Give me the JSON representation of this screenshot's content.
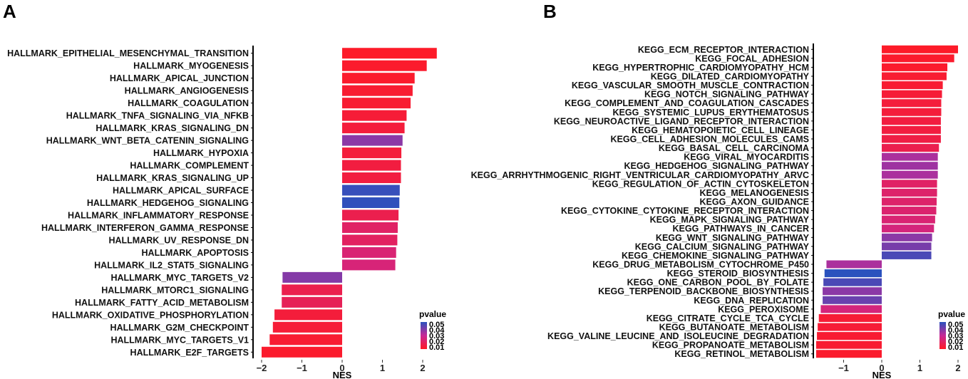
{
  "chart_data": [
    {
      "type": "bar",
      "panel": "A",
      "orientation": "horizontal",
      "xlabel": "NES",
      "xlim": [
        -2.2,
        2.5
      ],
      "xticks": [
        -2,
        -1,
        0,
        1,
        2
      ],
      "xtick_labels": [
        "−2",
        "−1",
        "0",
        "1",
        "2"
      ],
      "categories": [
        "HALLMARK_EPITHELIAL_MESENCHYMAL_TRANSITION",
        "HALLMARK_MYOGENESIS",
        "HALLMARK_APICAL_JUNCTION",
        "HALLMARK_ANGIOGENESIS",
        "HALLMARK_COAGULATION",
        "HALLMARK_TNFA_SIGNALING_VIA_NFKB",
        "HALLMARK_KRAS_SIGNALING_DN",
        "HALLMARK_WNT_BETA_CATENIN_SIGNALING",
        "HALLMARK_HYPOXIA",
        "HALLMARK_COMPLEMENT",
        "HALLMARK_KRAS_SIGNALING_UP",
        "HALLMARK_APICAL_SURFACE",
        "HALLMARK_HEDGEHOG_SIGNALING",
        "HALLMARK_INFLAMMATORY_RESPONSE",
        "HALLMARK_INTERFERON_GAMMA_RESPONSE",
        "HALLMARK_UV_RESPONSE_DN",
        "HALLMARK_APOPTOSIS",
        "HALLMARK_IL2_STAT5_SIGNALING",
        "HALLMARK_MYC_TARGETS_V2",
        "HALLMARK_MTORC1_SIGNALING",
        "HALLMARK_FATTY_ACID_METABOLISM",
        "HALLMARK_OXIDATIVE_PHOSPHORYLATION",
        "HALLMARK_G2M_CHECKPOINT",
        "HALLMARK_MYC_TARGETS_V1",
        "HALLMARK_E2F_TARGETS"
      ],
      "values": [
        2.35,
        2.1,
        1.8,
        1.75,
        1.7,
        1.6,
        1.55,
        1.5,
        1.47,
        1.46,
        1.46,
        1.43,
        1.42,
        1.4,
        1.38,
        1.37,
        1.34,
        1.32,
        -1.48,
        -1.5,
        -1.5,
        -1.68,
        -1.72,
        -1.8,
        -2.0
      ],
      "pvalues": [
        0.002,
        0.003,
        0.003,
        0.004,
        0.004,
        0.005,
        0.006,
        0.035,
        0.006,
        0.007,
        0.007,
        0.048,
        0.049,
        0.01,
        0.015,
        0.014,
        0.018,
        0.019,
        0.036,
        0.01,
        0.012,
        0.006,
        0.005,
        0.004,
        0.003
      ],
      "legend": {
        "title": "pvalue",
        "ticks": [
          "0.05",
          "0.04",
          "0.03",
          "0.02",
          "0.01"
        ],
        "position": "bottom-right"
      }
    },
    {
      "type": "bar",
      "panel": "B",
      "orientation": "horizontal",
      "xlabel": "NES",
      "xlim": [
        -1.85,
        2.2
      ],
      "xticks": [
        -1,
        0,
        1,
        2
      ],
      "xtick_labels": [
        "−1",
        "0",
        "1",
        "2"
      ],
      "categories": [
        "KEGG_ECM_RECEPTOR_INTERACTION",
        "KEGG_FOCAL_ADHESION",
        "KEGG_HYPERTROPHIC_CARDIOMYOPATHY_HCM",
        "KEGG_DILATED_CARDIOMYOPATHY",
        "KEGG_VASCULAR_SMOOTH_MUSCLE_CONTRACTION",
        "KEGG_NOTCH_SIGNALING_PATHWAY",
        "KEGG_COMPLEMENT_AND_COAGULATION_CASCADES",
        "KEGG_SYSTEMIC_LUPUS_ERYTHEMATOSUS",
        "KEGG_NEUROACTIVE_LIGAND_RECEPTOR_INTERACTION",
        "KEGG_HEMATOPOIETIC_CELL_LINEAGE",
        "KEGG_CELL_ADHESION_MOLECULES_CAMS",
        "KEGG_BASAL_CELL_CARCINOMA",
        "KEGG_VIRAL_MYOCARDITIS",
        "KEGG_HEDGEHOG_SIGNALING_PATHWAY",
        "KEGG_ARRHYTHMOGENIC_RIGHT_VENTRICULAR_CARDIOMYOPATHY_ARVC",
        "KEGG_REGULATION_OF_ACTIN_CYTOSKELETON",
        "KEGG_MELANOGENESIS",
        "KEGG_AXON_GUIDANCE",
        "KEGG_CYTOKINE_CYTOKINE_RECEPTOR_INTERACTION",
        "KEGG_MAPK_SIGNALING_PATHWAY",
        "KEGG_PATHWAYS_IN_CANCER",
        "KEGG_WNT_SIGNALING_PATHWAY",
        "KEGG_CALCIUM_SIGNALING_PATHWAY",
        "KEGG_CHEMOKINE_SIGNALING_PATHWAY",
        "KEGG_DRUG_METABOLISM_CYTOCHROME_P450",
        "KEGG_STEROID_BIOSYNTHESIS",
        "KEGG_ONE_CARBON_POOL_BY_FOLATE",
        "KEGG_TERPENOID_BACKBONE_BIOSYNTHESIS",
        "KEGG_DNA_REPLICATION",
        "KEGG_PEROXISOME",
        "KEGG_CITRATE_CYCLE_TCA_CYCLE",
        "KEGG_BUTANOATE_METABOLISM",
        "KEGG_VALINE_LEUCINE_AND_ISOLEUCINE_DEGRADATION",
        "KEGG_PROPANOATE_METABOLISM",
        "KEGG_RETINOL_METABOLISM"
      ],
      "values": [
        2.0,
        1.9,
        1.72,
        1.7,
        1.6,
        1.58,
        1.56,
        1.56,
        1.55,
        1.55,
        1.55,
        1.5,
        1.47,
        1.47,
        1.47,
        1.45,
        1.45,
        1.44,
        1.43,
        1.4,
        1.37,
        1.32,
        1.3,
        1.3,
        -1.45,
        -1.5,
        -1.53,
        -1.55,
        -1.55,
        -1.6,
        -1.65,
        -1.68,
        -1.7,
        -1.72,
        -1.72
      ],
      "pvalues": [
        0.002,
        0.003,
        0.003,
        0.004,
        0.004,
        0.005,
        0.006,
        0.006,
        0.007,
        0.007,
        0.008,
        0.01,
        0.03,
        0.032,
        0.03,
        0.015,
        0.016,
        0.016,
        0.017,
        0.018,
        0.02,
        0.035,
        0.038,
        0.045,
        0.03,
        0.05,
        0.045,
        0.035,
        0.04,
        0.02,
        0.005,
        0.005,
        0.004,
        0.004,
        0.003
      ],
      "legend": {
        "title": "pvalue",
        "ticks": [
          "0.05",
          "0.04",
          "0.03",
          "0.02",
          "0.01"
        ],
        "position": "bottom-right"
      }
    }
  ],
  "colors": {
    "low_p": "#ff1a24",
    "high_p": "#2a52be"
  }
}
